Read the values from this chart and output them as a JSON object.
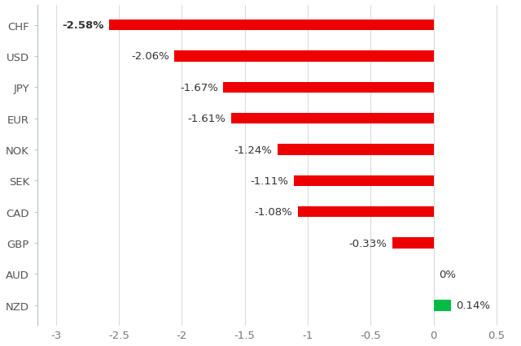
{
  "categories": [
    "NZD",
    "AUD",
    "GBP",
    "CAD",
    "SEK",
    "NOK",
    "EUR",
    "JPY",
    "USD",
    "CHF"
  ],
  "values": [
    0.14,
    0.0,
    -0.33,
    -1.08,
    -1.11,
    -1.24,
    -1.61,
    -1.67,
    -2.06,
    -2.58
  ],
  "labels": [
    "0.14%",
    "0%",
    "-0.33%",
    "-1.08%",
    "-1.11%",
    "-1.24%",
    "-1.61%",
    "-1.67%",
    "-2.06%",
    "-2.58%"
  ],
  "label_bold": [
    false,
    false,
    false,
    false,
    false,
    false,
    false,
    false,
    false,
    true
  ],
  "bar_colors": [
    "#00bb44",
    "#ffffff",
    "#ee0000",
    "#ee0000",
    "#ee0000",
    "#ee0000",
    "#ee0000",
    "#ee0000",
    "#ee0000",
    "#ee0000"
  ],
  "xlim": [
    -3.15,
    0.65
  ],
  "xticks": [
    -3,
    -2.5,
    -2,
    -1.5,
    -1,
    -0.5,
    0,
    0.5
  ],
  "xtick_labels": [
    "-3",
    "-2.5",
    "-2",
    "-1.5",
    "-1",
    "-0.5",
    "0",
    "0.5"
  ],
  "background_color": "#ffffff",
  "grid_color": "#d8dce0",
  "spine_color": "#c0c8d8",
  "bar_height": 0.35,
  "label_fontsize": 9.5,
  "tick_fontsize": 9.5
}
